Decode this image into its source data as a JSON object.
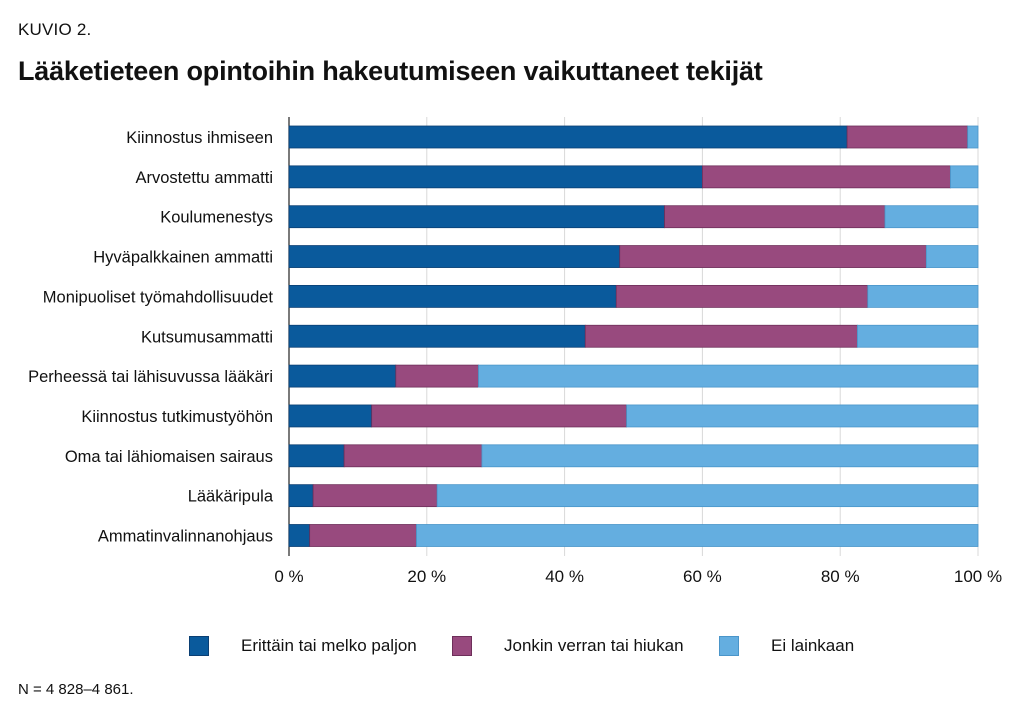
{
  "figure": {
    "label": "KUVIO 2.",
    "title": "Lääketieteen opintoihin hakeutumiseen vaikuttaneet tekijät",
    "footnote": "N = 4 828–4 861."
  },
  "chart_data": {
    "type": "bar",
    "orientation": "horizontal",
    "stacked": true,
    "title": "Lääketieteen opintoihin hakeutumiseen vaikuttaneet tekijät",
    "xlabel": "",
    "ylabel": "",
    "xlim": [
      0,
      100
    ],
    "x_ticks": [
      "0 %",
      "20 %",
      "40 %",
      "60 %",
      "80 %",
      "100 %"
    ],
    "grid": "vertical",
    "legend_position": "bottom",
    "categories": [
      "Kiinnostus ihmiseen",
      "Arvostettu ammatti",
      "Koulumenestys",
      "Hyväpalkkainen ammatti",
      "Monipuoliset työmahdollisuudet",
      "Kutsumusammatti",
      "Perheessä tai lähisuvussa lääkäri",
      "Kiinnostus tutkimustyöhön",
      "Oma tai lähiomaisen sairaus",
      "Lääkäripula",
      "Ammatinvalinnanohjaus"
    ],
    "series": [
      {
        "name": "Erittäin tai melko paljon",
        "color": "#0a5a9c",
        "values": [
          81,
          60,
          54.5,
          48,
          47.5,
          43,
          15.5,
          12,
          8,
          3.5,
          3
        ]
      },
      {
        "name": "Jonkin verran tai hiukan",
        "color": "#984a7e",
        "values": [
          17.5,
          36,
          32,
          44.5,
          36.5,
          39.5,
          12,
          37,
          20,
          18,
          15.5
        ]
      },
      {
        "name": "Ei lainkaan",
        "color": "#64aee0",
        "values": [
          1.5,
          4,
          13.5,
          7.5,
          16,
          17.5,
          72.5,
          51,
          72,
          78.5,
          81.5
        ]
      }
    ]
  }
}
